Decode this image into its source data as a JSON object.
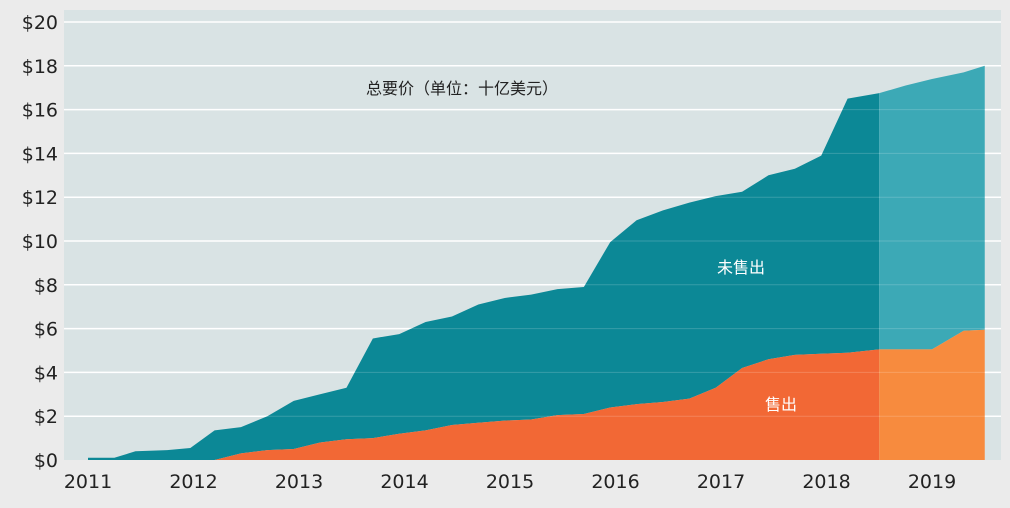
{
  "chart_data": {
    "type": "area",
    "title": "总要价（单位：十亿美元）",
    "xlabel": "",
    "ylabel": "",
    "ylim": [
      0,
      20
    ],
    "xlim": [
      2011,
      2019.7
    ],
    "y_ticks": [
      "$0",
      "$2",
      "$4",
      "$6",
      "$8",
      "$10",
      "$12",
      "$14",
      "$16",
      "$18",
      "$20"
    ],
    "y_tick_values": [
      0,
      2,
      4,
      6,
      8,
      10,
      12,
      14,
      16,
      18,
      20
    ],
    "x_ticks": [
      "2011",
      "2012",
      "2013",
      "2014",
      "2015",
      "2016",
      "2017",
      "2018",
      "2019"
    ],
    "x_tick_values": [
      2011,
      2012,
      2013,
      2014,
      2015,
      2016,
      2017,
      2018,
      2019
    ],
    "grid": true,
    "projection_start": 2018.5,
    "series": [
      {
        "name": "售出",
        "x": [
          2011.0,
          2011.25,
          2011.45,
          2011.75,
          2011.97,
          2012.2,
          2012.45,
          2012.7,
          2012.95,
          2013.2,
          2013.45,
          2013.7,
          2013.95,
          2014.2,
          2014.45,
          2014.7,
          2014.95,
          2015.2,
          2015.45,
          2015.7,
          2015.95,
          2016.2,
          2016.45,
          2016.7,
          2016.95,
          2017.2,
          2017.45,
          2017.7,
          2017.95,
          2018.2,
          2018.5,
          2018.75,
          2019.0,
          2019.3,
          2019.5
        ],
        "values": [
          0,
          0,
          0,
          0,
          0,
          0,
          0.3,
          0.45,
          0.5,
          0.8,
          0.95,
          1.0,
          1.2,
          1.35,
          1.6,
          1.7,
          1.8,
          1.85,
          2.05,
          2.1,
          2.4,
          2.55,
          2.65,
          2.8,
          3.3,
          4.2,
          4.6,
          4.8,
          4.85,
          4.9,
          5.05,
          5.05,
          5.05,
          5.9,
          5.95
        ]
      },
      {
        "name": "未售出",
        "x": [
          2011.0,
          2011.25,
          2011.45,
          2011.75,
          2011.97,
          2012.2,
          2012.45,
          2012.7,
          2012.95,
          2013.2,
          2013.45,
          2013.7,
          2013.95,
          2014.2,
          2014.45,
          2014.7,
          2014.95,
          2015.2,
          2015.45,
          2015.7,
          2015.95,
          2016.2,
          2016.45,
          2016.7,
          2016.95,
          2017.2,
          2017.45,
          2017.7,
          2017.95,
          2018.2,
          2018.5,
          2018.75,
          2019.0,
          2019.3,
          2019.5
        ],
        "values": [
          0.1,
          0.1,
          0.4,
          0.45,
          0.55,
          1.35,
          1.2,
          1.55,
          2.2,
          2.2,
          2.35,
          4.55,
          4.55,
          4.95,
          4.95,
          5.4,
          5.6,
          5.7,
          5.75,
          5.8,
          7.55,
          8.4,
          8.75,
          8.95,
          8.75,
          8.05,
          8.4,
          8.5,
          9.05,
          11.6,
          11.7,
          12.05,
          12.35,
          11.8,
          12.05
        ]
      }
    ],
    "colors": {
      "sold": "#f26835",
      "sold_projected": "#f78b3e",
      "unsold": "#0c8896",
      "unsold_projected": "#3ca9b6",
      "plot_bg": "#d9e3e4",
      "frame_bg": "#ebebeb"
    }
  }
}
